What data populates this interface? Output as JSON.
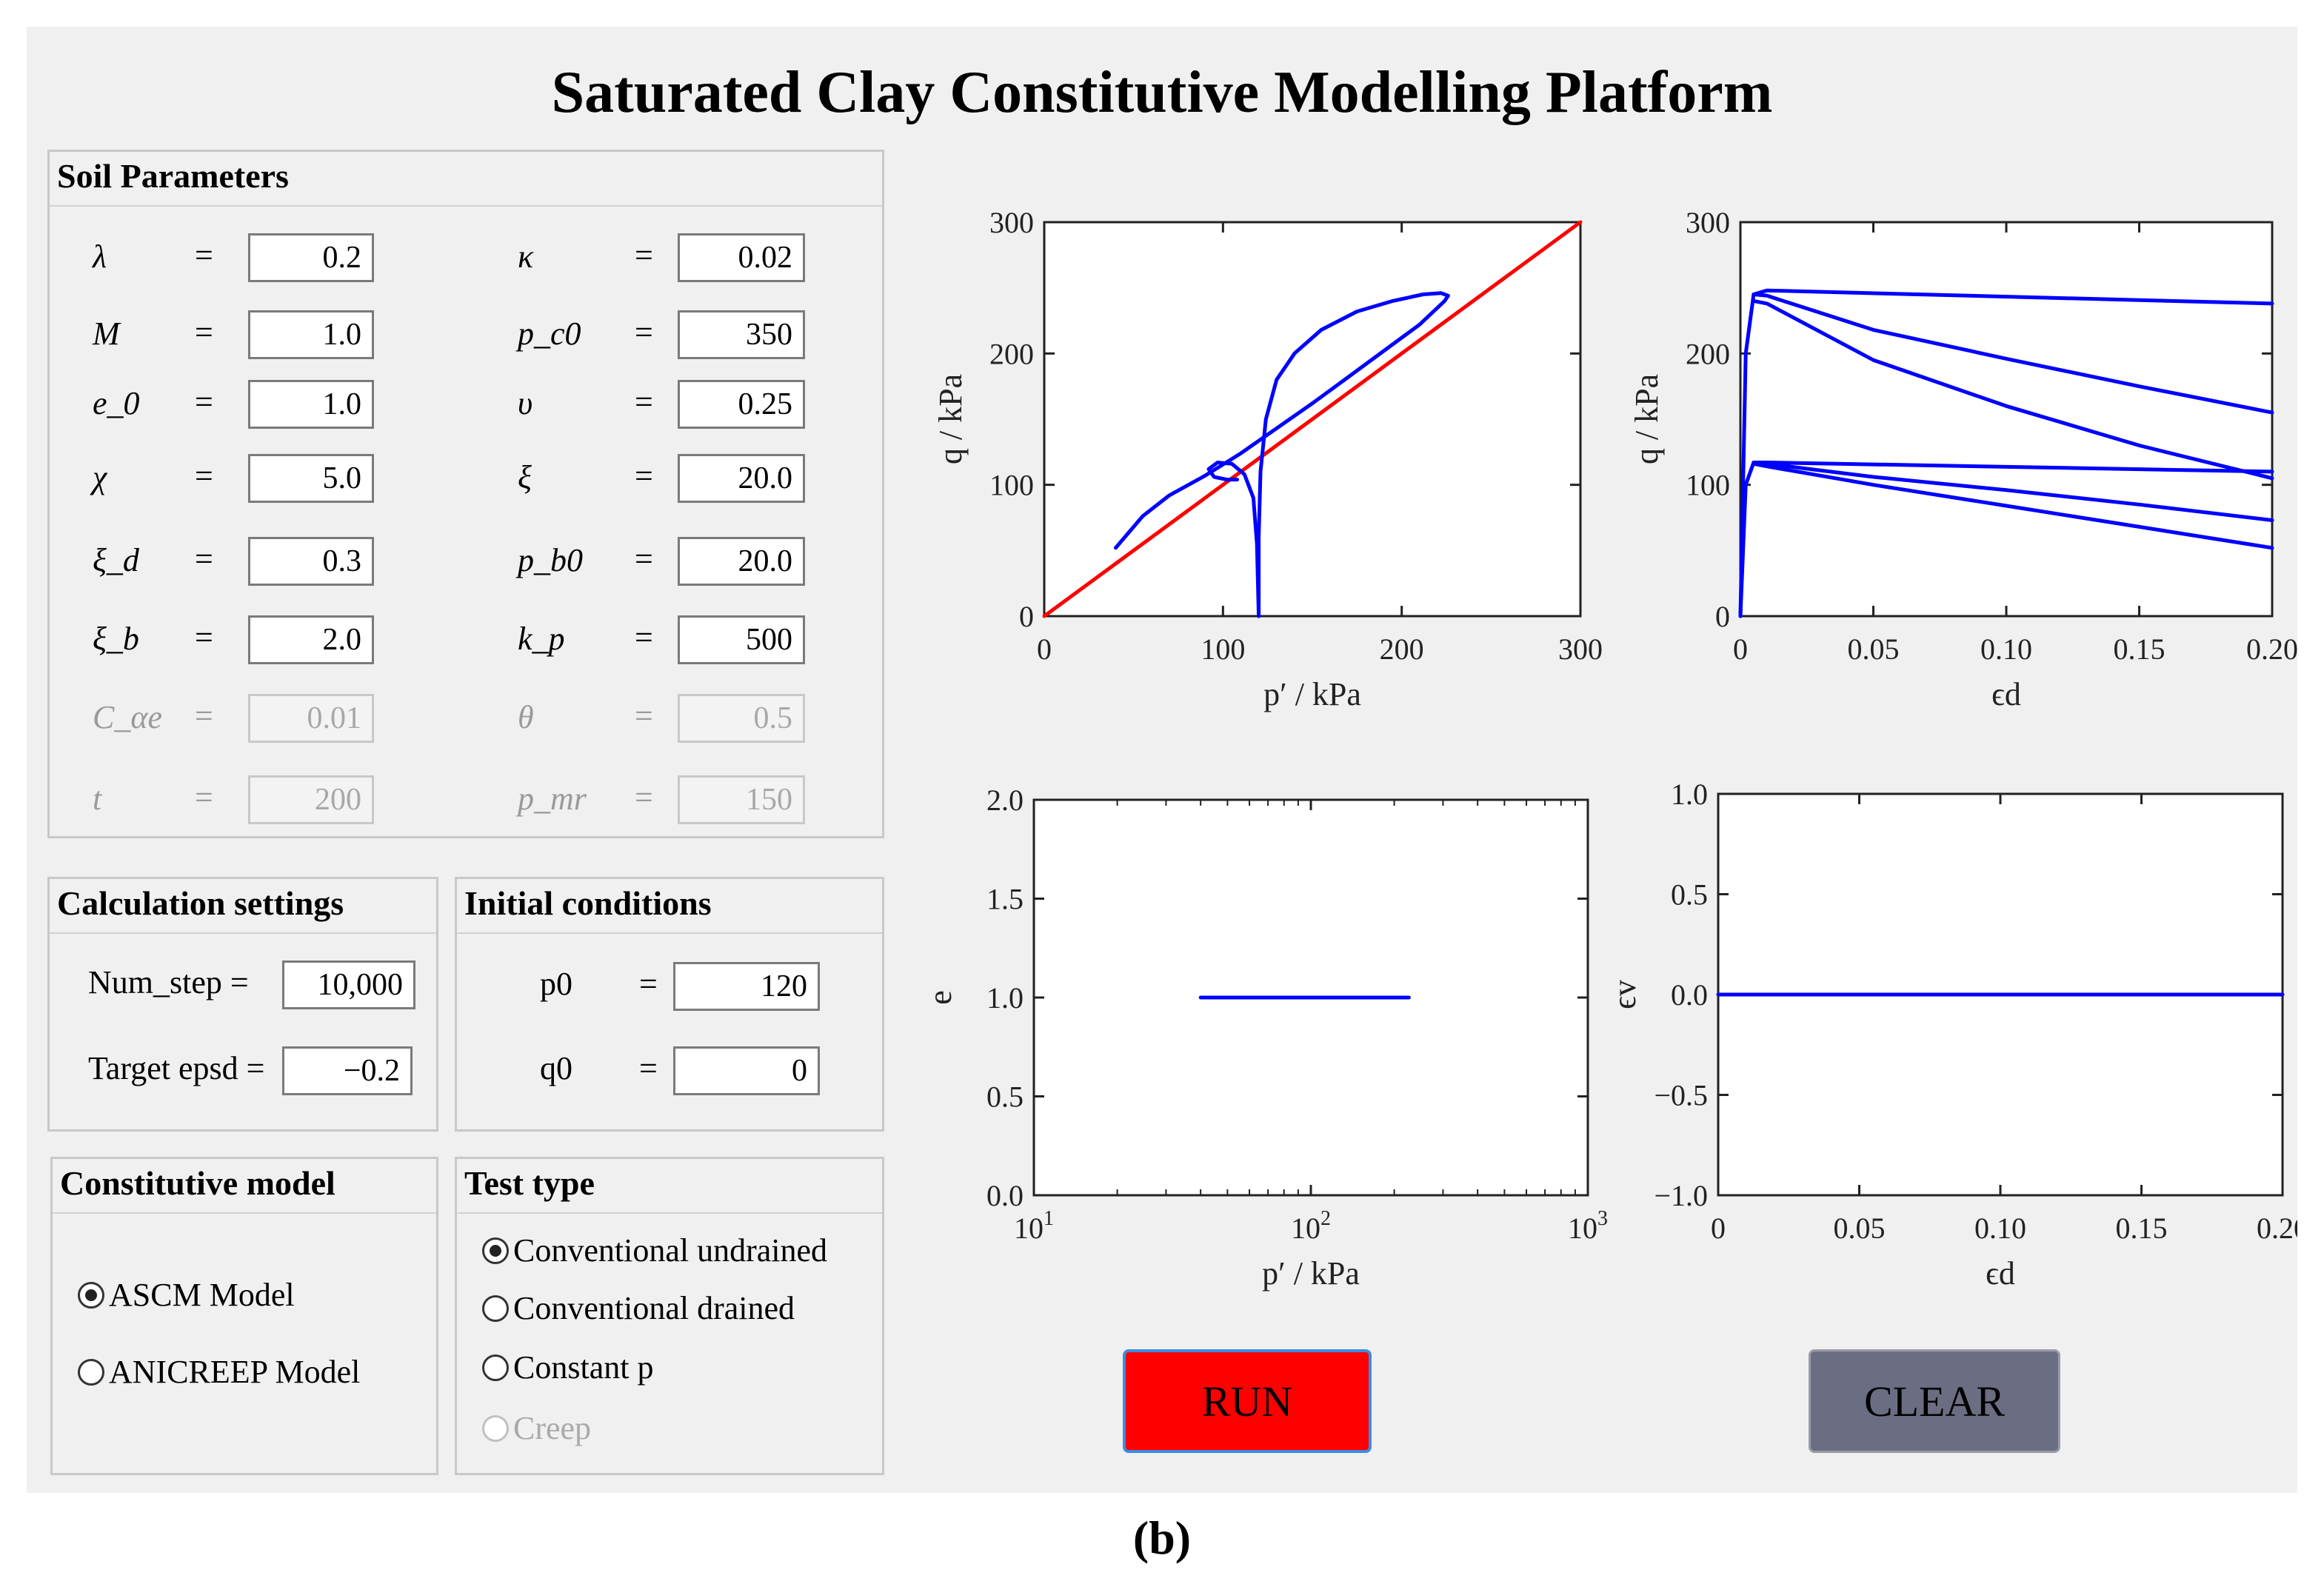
{
  "title": "Saturated Clay Constitutive Modelling Platform",
  "caption": "(b)",
  "soil": {
    "title": "Soil Parameters",
    "left": [
      {
        "label": "λ",
        "value": "0.2",
        "disabled": false
      },
      {
        "label": "M",
        "value": "1.0",
        "disabled": false
      },
      {
        "label": "e_0",
        "value": "1.0",
        "disabled": false
      },
      {
        "label": "χ",
        "value": "5.0",
        "disabled": false
      },
      {
        "label": "ξ_d",
        "value": "0.3",
        "disabled": false
      },
      {
        "label": "ξ_b",
        "value": "2.0",
        "disabled": false
      },
      {
        "label": "C_αe",
        "value": "0.01",
        "disabled": true
      },
      {
        "label": "t",
        "value": "200",
        "disabled": true
      }
    ],
    "right": [
      {
        "label": "κ",
        "value": "0.02",
        "disabled": false
      },
      {
        "label": "p_c0",
        "value": "350",
        "disabled": false
      },
      {
        "label": "υ",
        "value": "0.25",
        "disabled": false
      },
      {
        "label": "ξ",
        "value": "20.0",
        "disabled": false
      },
      {
        "label": "p_b0",
        "value": "20.0",
        "disabled": false
      },
      {
        "label": "k_p",
        "value": "500",
        "disabled": false
      },
      {
        "label": "θ",
        "value": "0.5",
        "disabled": true
      },
      {
        "label": "p_mr",
        "value": "150",
        "disabled": true
      }
    ],
    "eq": "="
  },
  "calc": {
    "title": "Calculation settings",
    "num_step_label": "Num_step =",
    "num_step": "10,000",
    "target_label": "Target epsd =",
    "target": "−0.2"
  },
  "initial": {
    "title": "Initial conditions",
    "p0_label": "p0",
    "p0": "120",
    "q0_label": "q0",
    "q0": "0",
    "eq": "="
  },
  "model": {
    "title": "Constitutive model",
    "options": [
      {
        "label": "ASCM Model",
        "selected": true
      },
      {
        "label": "ANICREEP Model",
        "selected": false
      }
    ]
  },
  "test": {
    "title": "Test type",
    "options": [
      {
        "label": "Conventional undrained",
        "selected": true,
        "disabled": false
      },
      {
        "label": "Conventional drained",
        "selected": false,
        "disabled": false
      },
      {
        "label": "Constant p",
        "selected": false,
        "disabled": false
      },
      {
        "label": "Creep",
        "selected": false,
        "disabled": true
      }
    ]
  },
  "buttons": {
    "run": "RUN",
    "clear": "CLEAR",
    "run_color": "#ff0000",
    "clear_color": "#6b6e82"
  },
  "colors": {
    "curve": "#0000ff",
    "csl": "#ff0000"
  },
  "chart_data": [
    {
      "id": "pq",
      "type": "line",
      "xlabel": "p′  /  kPa",
      "ylabel": "q  /  kPa",
      "xlim": [
        0,
        300
      ],
      "ylim": [
        0,
        300
      ],
      "xticks": [
        "0",
        "100",
        "200",
        "300"
      ],
      "yticks": [
        "0",
        "100",
        "200",
        "300"
      ],
      "series": [
        {
          "color": "#ff0000",
          "x": [
            0,
            300
          ],
          "y": [
            0,
            300
          ]
        },
        {
          "color": "#0000ff",
          "x": [
            120,
            120,
            121,
            124,
            130,
            140,
            155,
            175,
            195,
            212,
            222,
            226,
            224,
            210,
            190,
            170,
            150,
            130,
            110,
            90,
            70,
            55,
            40
          ],
          "y": [
            0,
            60,
            110,
            150,
            180,
            200,
            218,
            232,
            240,
            245,
            246,
            244,
            240,
            222,
            202,
            182,
            162,
            143,
            124,
            107,
            92,
            76,
            52
          ]
        },
        {
          "color": "#0000ff",
          "x": [
            120,
            119,
            117,
            112,
            105,
            97,
            92,
            95,
            102,
            108
          ],
          "y": [
            0,
            55,
            90,
            108,
            116,
            117,
            112,
            106,
            104,
            104
          ]
        }
      ]
    },
    {
      "id": "epsd-q",
      "type": "line",
      "xlabel": "ϵd",
      "ylabel": "q  /  kPa",
      "xlim": [
        0,
        0.2
      ],
      "ylim": [
        0,
        300
      ],
      "xticks": [
        "0",
        "0.05",
        "0.10",
        "0.15",
        "0.20"
      ],
      "yticks": [
        "0",
        "100",
        "200",
        "300"
      ],
      "series": [
        {
          "color": "#0000ff",
          "x": [
            0,
            0.002,
            0.005,
            0.01,
            0.2
          ],
          "y": [
            0,
            200,
            245,
            248,
            238
          ]
        },
        {
          "color": "#0000ff",
          "x": [
            0.005,
            0.01,
            0.05,
            0.1,
            0.15,
            0.2
          ],
          "y": [
            245,
            244,
            218,
            196,
            175,
            155
          ]
        },
        {
          "color": "#0000ff",
          "x": [
            0.005,
            0.01,
            0.05,
            0.1,
            0.15,
            0.2
          ],
          "y": [
            240,
            238,
            195,
            160,
            130,
            105
          ]
        },
        {
          "color": "#0000ff",
          "x": [
            0,
            0.002,
            0.005,
            0.01,
            0.2
          ],
          "y": [
            0,
            100,
            117,
            117,
            110
          ]
        },
        {
          "color": "#0000ff",
          "x": [
            0.005,
            0.01,
            0.05,
            0.1,
            0.15,
            0.2
          ],
          "y": [
            117,
            116,
            106,
            96,
            85,
            73
          ]
        },
        {
          "color": "#0000ff",
          "x": [
            0.005,
            0.01,
            0.05,
            0.1,
            0.15,
            0.2
          ],
          "y": [
            116,
            114,
            100,
            84,
            68,
            52
          ]
        }
      ]
    },
    {
      "id": "p-e",
      "type": "line",
      "xscale": "log",
      "xlabel": "p′  /  kPa",
      "ylabel": "e",
      "xlim": [
        10,
        1000
      ],
      "ylim": [
        0,
        2
      ],
      "xticks": [
        "10",
        "10",
        "10"
      ],
      "xtick_exp": [
        "1",
        "2",
        "3"
      ],
      "yticks": [
        "0.0",
        "0.5",
        "1.0",
        "1.5",
        "2.0"
      ],
      "series": [
        {
          "color": "#0000ff",
          "x": [
            40,
            226
          ],
          "y": [
            1.0,
            1.0
          ]
        }
      ]
    },
    {
      "id": "epsd-epsv",
      "type": "line",
      "xlabel": "ϵd",
      "ylabel": "ϵv",
      "xlim": [
        0,
        0.2
      ],
      "ylim": [
        -1,
        1
      ],
      "yreversed": true,
      "xticks": [
        "0",
        "0.05",
        "0.10",
        "0.15",
        "0.20"
      ],
      "yticks": [
        "−1.0",
        "−0.5",
        "0.0",
        "0.5",
        "1.0"
      ],
      "series": [
        {
          "color": "#0000ff",
          "x": [
            0,
            0.2
          ],
          "y": [
            0,
            0
          ]
        }
      ]
    }
  ]
}
